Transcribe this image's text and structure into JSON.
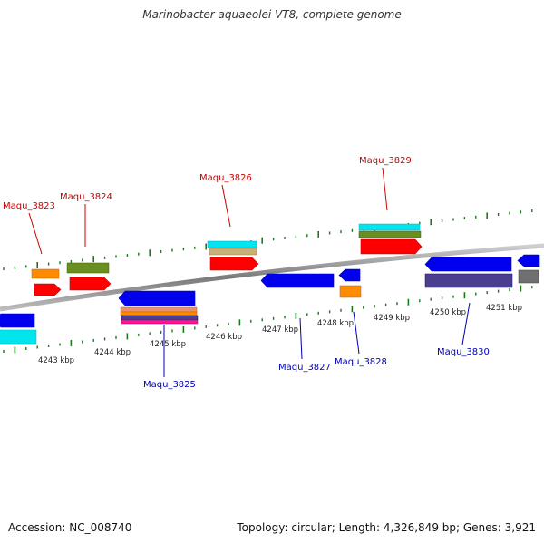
{
  "title": "Marinobacter aquaeolei VT8, complete genome",
  "accession": "Accession: NC_008740",
  "summary": "Topology: circular; Length: 4,326,849 bp; Genes: 3,921",
  "colors": {
    "backbone": "#808080",
    "tick": "#1a7a1a",
    "forward_label": "#cc0000",
    "reverse_label": "#0000b0",
    "leader_forward": "#cc0000",
    "leader_reverse": "#0000b0"
  },
  "scale_ticks": [
    {
      "label": "4243 kbp"
    },
    {
      "label": "4244 kbp"
    },
    {
      "label": "4245 kbp"
    },
    {
      "label": "4246 kbp"
    },
    {
      "label": "4247 kbp"
    },
    {
      "label": "4248 kbp"
    },
    {
      "label": "4249 kbp"
    },
    {
      "label": "4250 kbp"
    },
    {
      "label": "4251 kbp"
    }
  ],
  "forward_labels": [
    {
      "text": "Maqu_3823"
    },
    {
      "text": "Maqu_3824"
    },
    {
      "text": "Maqu_3826"
    },
    {
      "text": "Maqu_3829"
    }
  ],
  "reverse_labels": [
    {
      "text": "Maqu_3825"
    },
    {
      "text": "Maqu_3827"
    },
    {
      "text": "Maqu_3828"
    },
    {
      "text": "Maqu_3830"
    }
  ],
  "feature_colors": {
    "cds": "#ff0000",
    "cds_reverse": "#0000ee",
    "orange": "#ff8c00",
    "olive": "#6b8e23",
    "cyan": "#00e5ee",
    "tan": "#c8b07a",
    "gray": "#707070",
    "slate": "#4a3f8f",
    "magenta": "#ff1493",
    "salmon": "#e89070"
  }
}
